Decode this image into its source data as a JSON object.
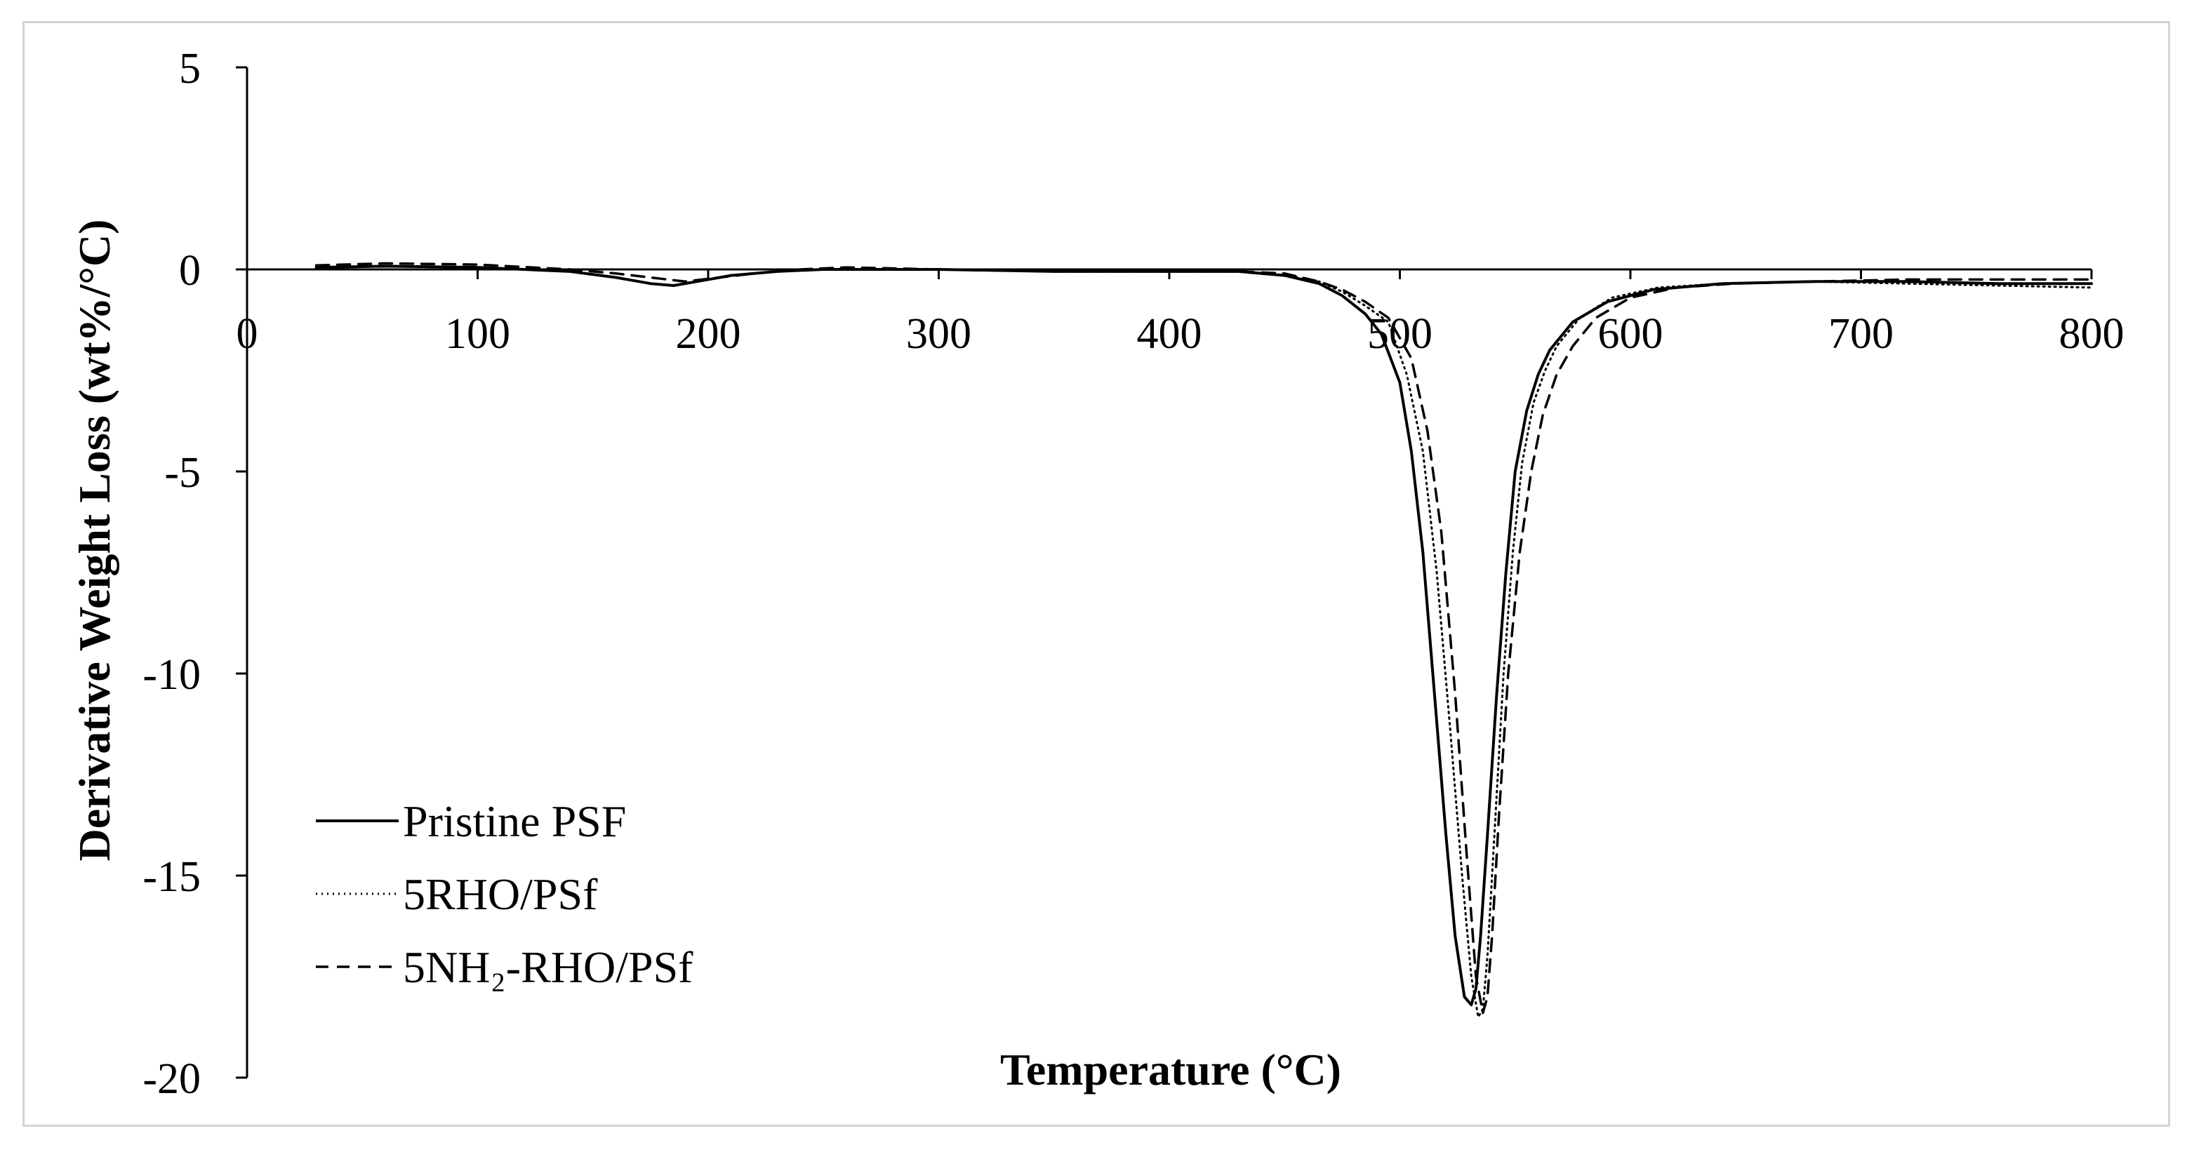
{
  "chart_data": {
    "type": "line",
    "title": "",
    "xlabel": "Temperature (°C)",
    "ylabel": "Derivative Weight Loss (wt%/°C)",
    "xlim": [
      0,
      800
    ],
    "ylim": [
      -20,
      5
    ],
    "xticks": [
      "0",
      "100",
      "200",
      "300",
      "400",
      "500",
      "600",
      "700",
      "800"
    ],
    "yticks": [
      "5",
      "0",
      "-5",
      "-10",
      "-15",
      "-20"
    ],
    "grid": false,
    "legend_position": "bottom-left",
    "colors": {
      "line": "#000000",
      "frame": "#d4d4d4"
    },
    "series": [
      {
        "name": "Pristine PSF",
        "dash": "solid",
        "x": [
          30,
          60,
          100,
          140,
          160,
          175,
          185,
          195,
          210,
          230,
          250,
          300,
          350,
          400,
          430,
          450,
          465,
          475,
          485,
          492,
          500,
          505,
          510,
          515,
          520,
          524,
          528,
          531,
          533,
          535,
          538,
          542,
          546,
          550,
          555,
          560,
          565,
          575,
          590,
          610,
          640,
          680,
          720,
          760,
          800
        ],
        "y": [
          0.05,
          0.08,
          0.05,
          -0.05,
          -0.2,
          -0.35,
          -0.4,
          -0.3,
          -0.15,
          -0.05,
          0.0,
          0.0,
          -0.05,
          -0.05,
          -0.05,
          -0.15,
          -0.35,
          -0.65,
          -1.1,
          -1.6,
          -2.8,
          -4.5,
          -7.0,
          -10.5,
          -14.0,
          -16.5,
          -18.0,
          -18.2,
          -17.8,
          -16.5,
          -14.0,
          -10.5,
          -7.5,
          -5.0,
          -3.5,
          -2.6,
          -2.0,
          -1.3,
          -0.8,
          -0.5,
          -0.35,
          -0.3,
          -0.3,
          -0.35,
          -0.35
        ]
      },
      {
        "name": "5RHO/PSf",
        "dash": "dotted",
        "x": [
          30,
          60,
          100,
          140,
          160,
          175,
          185,
          195,
          210,
          230,
          250,
          300,
          350,
          400,
          430,
          450,
          465,
          475,
          485,
          495,
          503,
          510,
          516,
          522,
          527,
          531,
          534,
          536,
          538,
          541,
          545,
          549,
          553,
          558,
          563,
          568,
          578,
          592,
          612,
          640,
          680,
          720,
          760,
          800
        ],
        "y": [
          0.05,
          0.08,
          0.05,
          -0.05,
          -0.2,
          -0.35,
          -0.4,
          -0.3,
          -0.15,
          -0.05,
          0.0,
          0.0,
          -0.05,
          -0.05,
          -0.05,
          -0.15,
          -0.3,
          -0.55,
          -0.9,
          -1.3,
          -2.6,
          -4.5,
          -7.5,
          -11.5,
          -15.0,
          -17.5,
          -18.5,
          -18.3,
          -17.0,
          -14.0,
          -10.0,
          -7.0,
          -4.8,
          -3.3,
          -2.5,
          -1.9,
          -1.2,
          -0.7,
          -0.45,
          -0.35,
          -0.3,
          -0.35,
          -0.4,
          -0.45
        ]
      },
      {
        "name": "5NH₂-RHO/PSf",
        "dash": "dashed",
        "x": [
          30,
          60,
          100,
          140,
          160,
          175,
          190,
          205,
          220,
          240,
          260,
          300,
          350,
          400,
          430,
          450,
          465,
          475,
          485,
          495,
          505,
          512,
          518,
          524,
          529,
          533,
          536,
          538,
          540,
          543,
          547,
          552,
          557,
          562,
          568,
          575,
          585,
          600,
          620,
          645,
          680,
          720,
          760,
          800
        ],
        "y": [
          0.1,
          0.15,
          0.12,
          0.0,
          -0.1,
          -0.2,
          -0.3,
          -0.2,
          -0.1,
          0.0,
          0.05,
          0.0,
          -0.05,
          -0.05,
          -0.05,
          -0.1,
          -0.3,
          -0.5,
          -0.8,
          -1.2,
          -2.2,
          -4.0,
          -6.5,
          -10.5,
          -14.5,
          -17.5,
          -18.4,
          -18.0,
          -16.5,
          -13.5,
          -10.0,
          -7.0,
          -5.0,
          -3.6,
          -2.6,
          -1.9,
          -1.2,
          -0.7,
          -0.45,
          -0.35,
          -0.3,
          -0.25,
          -0.25,
          -0.25
        ]
      }
    ]
  }
}
